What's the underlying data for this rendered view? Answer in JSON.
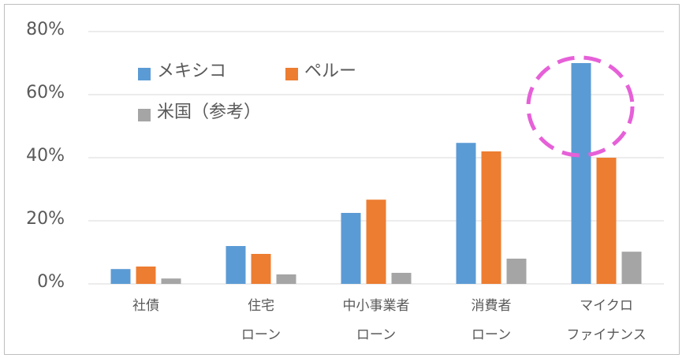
{
  "chart_data": {
    "type": "bar",
    "categories": [
      [
        "社債"
      ],
      [
        "住宅",
        "ローン"
      ],
      [
        "中小事業者",
        "ローン"
      ],
      [
        "消費者",
        "ローン"
      ],
      [
        "マイクロ",
        "ファイナンス"
      ]
    ],
    "series": [
      {
        "name": "メキシコ",
        "color": "#5b9bd5",
        "values": [
          4.7,
          12,
          22.5,
          44.7,
          70
        ]
      },
      {
        "name": "ペルー",
        "color": "#ed7d31",
        "values": [
          5.5,
          9.5,
          26.7,
          42,
          40
        ]
      },
      {
        "name": "米国（参考）",
        "color": "#a5a5a5",
        "values": [
          1.7,
          3,
          3.5,
          8,
          10.2
        ]
      }
    ],
    "ylim": [
      0,
      80
    ],
    "yticks": [
      {
        "value": 0,
        "label": "0%"
      },
      {
        "value": 20,
        "label": "20%"
      },
      {
        "value": 40,
        "label": "40%"
      },
      {
        "value": 60,
        "label": "60%"
      },
      {
        "value": 80,
        "label": "80%"
      }
    ],
    "grid": true,
    "legend": "upper left"
  }
}
